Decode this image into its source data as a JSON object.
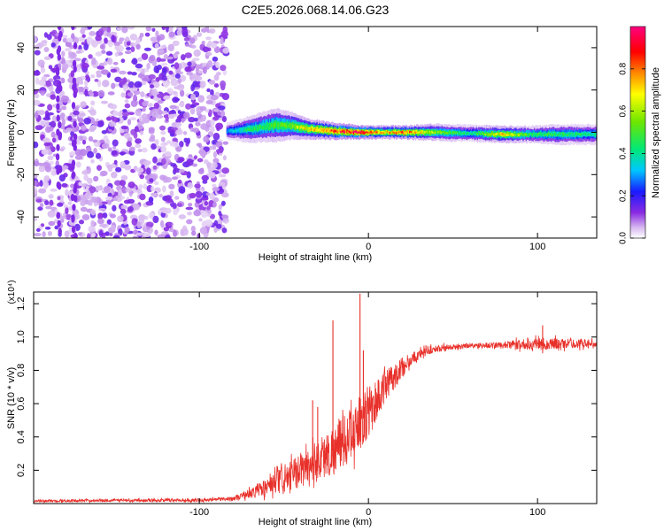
{
  "figure_title": "C2E5.2026.068.14.06.G23",
  "chart_data": [
    {
      "type": "heatmap",
      "title": "C2E5.2026.068.14.06.G23",
      "xlabel": "Height of straight line (km)",
      "ylabel": "Frequency (Hz)",
      "xlim": [
        -198,
        135
      ],
      "ylim": [
        -50,
        50
      ],
      "xticks": [
        -100,
        0,
        100
      ],
      "xtick_labels": [
        "-100",
        "0",
        "100"
      ],
      "yticks": [
        -40,
        -20,
        0,
        20,
        40
      ],
      "ytick_labels": [
        "-40",
        "-20",
        "0",
        "20",
        "40"
      ],
      "colorbar": {
        "label": "Normalized spectral amplitude",
        "range": [
          0.0,
          1.0
        ],
        "ticks": [
          0.0,
          0.2,
          0.4,
          0.6,
          0.8
        ],
        "tick_labels": [
          "0.0",
          "0.2",
          "0.4",
          "0.6",
          "0.8"
        ],
        "colors": [
          "#ffffff",
          "#d7b8f0",
          "#8a2be2",
          "#1a1aff",
          "#00c8ff",
          "#00e878",
          "#6ee600",
          "#ffff00",
          "#ff8800",
          "#ff0000",
          "#ff0080"
        ]
      },
      "noise_region": {
        "x_start": -198,
        "x_end": -84,
        "amplitude": 0.12
      },
      "ridge": [
        {
          "x": -84,
          "f_center": 0.5,
          "width": 2.5,
          "amplitude": 0.3
        },
        {
          "x": -70,
          "f_center": 1.5,
          "width": 4,
          "amplitude": 0.45
        },
        {
          "x": -55,
          "f_center": 3.5,
          "width": 5,
          "amplitude": 0.5
        },
        {
          "x": -45,
          "f_center": 3,
          "width": 4,
          "amplitude": 0.55
        },
        {
          "x": -35,
          "f_center": 1.5,
          "width": 3,
          "amplitude": 0.7
        },
        {
          "x": -20,
          "f_center": 0.5,
          "width": 2.5,
          "amplitude": 0.85
        },
        {
          "x": -5,
          "f_center": 0,
          "width": 2,
          "amplitude": 0.95
        },
        {
          "x": 10,
          "f_center": 0,
          "width": 2,
          "amplitude": 0.7
        },
        {
          "x": 20,
          "f_center": 0,
          "width": 2,
          "amplitude": 0.85
        },
        {
          "x": 40,
          "f_center": 0,
          "width": 2.5,
          "amplitude": 0.55
        },
        {
          "x": 60,
          "f_center": -0.5,
          "width": 2.5,
          "amplitude": 0.4
        },
        {
          "x": 80,
          "f_center": -1,
          "width": 2.5,
          "amplitude": 0.7
        },
        {
          "x": 96,
          "f_center": -1,
          "width": 2.5,
          "amplitude": 0.45
        },
        {
          "x": 110,
          "f_center": -1,
          "width": 3,
          "amplitude": 0.45
        },
        {
          "x": 135,
          "f_center": -1,
          "width": 3,
          "amplitude": 0.4
        }
      ]
    },
    {
      "type": "line",
      "xlabel": "Height of straight line (km)",
      "ylabel": "SNR (10 * v/v)",
      "y_multiplier_label": "(x10⁴)",
      "xlim": [
        -198,
        135
      ],
      "ylim": [
        0,
        1.27
      ],
      "xticks": [
        -100,
        0,
        100
      ],
      "xtick_labels": [
        "-100",
        "0",
        "100"
      ],
      "yticks": [
        0.2,
        0.4,
        0.6,
        0.8,
        1.0,
        1.2
      ],
      "ytick_labels": [
        "0.2",
        "0.4",
        "0.6",
        "0.8",
        "1.0",
        "1.2"
      ],
      "series": [
        {
          "name": "SNR",
          "color": "#e8302a",
          "envelope": {
            "x": [
              -198,
              -150,
              -100,
              -80,
              -70,
              -60,
              -50,
              -40,
              -30,
              -20,
              -10,
              0,
              10,
              20,
              30,
              40,
              50,
              60,
              80,
              100,
              135
            ],
            "y": [
              0.015,
              0.02,
              0.02,
              0.03,
              0.06,
              0.1,
              0.14,
              0.2,
              0.26,
              0.32,
              0.42,
              0.55,
              0.7,
              0.82,
              0.9,
              0.93,
              0.94,
              0.95,
              0.95,
              0.96,
              0.96
            ],
            "noise": [
              0.008,
              0.008,
              0.01,
              0.012,
              0.03,
              0.06,
              0.08,
              0.1,
              0.13,
              0.15,
              0.16,
              0.16,
              0.1,
              0.06,
              0.03,
              0.02,
              0.02,
              0.015,
              0.02,
              0.04,
              0.02
            ]
          },
          "spikes": [
            {
              "x": -33,
              "y": 0.62
            },
            {
              "x": -30,
              "y": 0.58
            },
            {
              "x": -21,
              "y": 1.1
            },
            {
              "x": -5,
              "y": 1.26
            },
            {
              "x": -3,
              "y": 0.92
            },
            {
              "x": 103,
              "y": 1.07
            }
          ]
        }
      ]
    }
  ]
}
